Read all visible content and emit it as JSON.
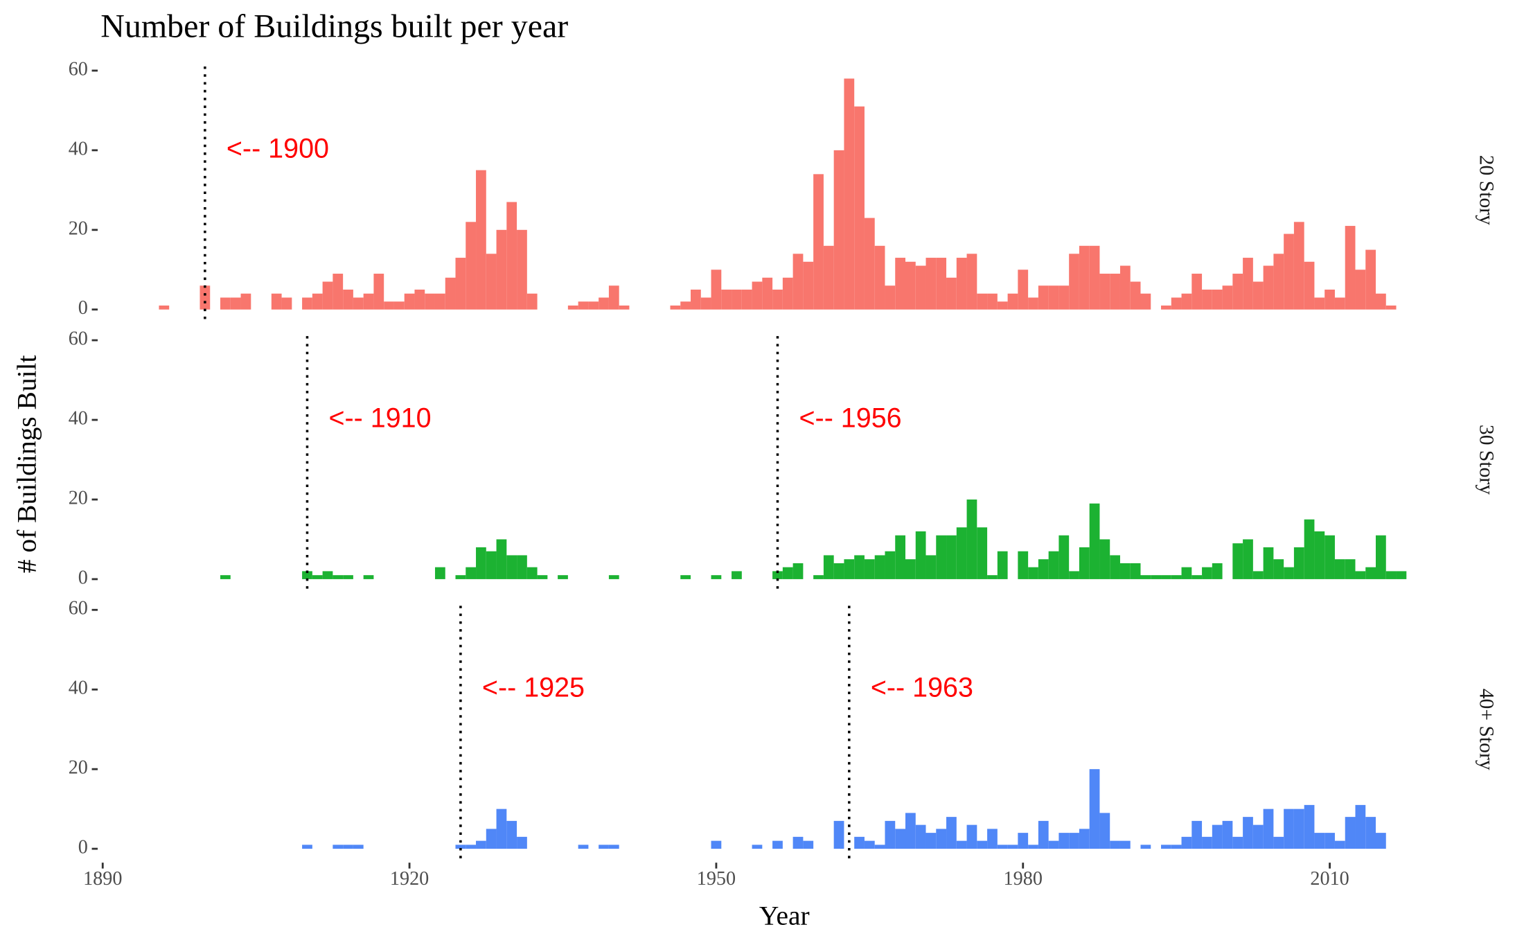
{
  "chart_data": {
    "type": "bar",
    "title": "Number of Buildings built per year",
    "xlabel": "Year",
    "ylabel": "# of Buildings Built",
    "xlim": [
      1889.7,
      2017.8
    ],
    "xticks": [
      1890,
      1920,
      1950,
      1980,
      2010
    ],
    "ylim": [
      -3,
      63
    ],
    "yticks": [
      0,
      20,
      40,
      60
    ],
    "series": [
      {
        "name": "20 Story",
        "color": "#f8766d",
        "x": [
          1896,
          1900,
          1902,
          1903,
          1904,
          1907,
          1908,
          1910,
          1911,
          1912,
          1913,
          1914,
          1915,
          1916,
          1917,
          1918,
          1919,
          1920,
          1921,
          1922,
          1923,
          1924,
          1925,
          1926,
          1927,
          1928,
          1929,
          1930,
          1931,
          1932,
          1936,
          1937,
          1938,
          1939,
          1940,
          1941,
          1946,
          1947,
          1948,
          1949,
          1950,
          1951,
          1952,
          1953,
          1954,
          1955,
          1956,
          1957,
          1958,
          1959,
          1960,
          1961,
          1962,
          1963,
          1964,
          1965,
          1966,
          1967,
          1968,
          1969,
          1970,
          1971,
          1972,
          1973,
          1974,
          1975,
          1976,
          1977,
          1978,
          1979,
          1980,
          1981,
          1982,
          1983,
          1984,
          1985,
          1986,
          1987,
          1988,
          1989,
          1990,
          1991,
          1992,
          1994,
          1995,
          1996,
          1997,
          1998,
          1999,
          2000,
          2001,
          2002,
          2003,
          2004,
          2005,
          2006,
          2007,
          2008,
          2009,
          2010,
          2011,
          2012,
          2013,
          2014,
          2015,
          2016
        ],
        "values": [
          1,
          6,
          3,
          3,
          4,
          4,
          3,
          3,
          4,
          7,
          9,
          5,
          3,
          4,
          9,
          2,
          2,
          4,
          5,
          4,
          4,
          8,
          13,
          22,
          35,
          14,
          20,
          27,
          20,
          4,
          1,
          2,
          2,
          3,
          6,
          1,
          1,
          2,
          5,
          3,
          10,
          5,
          5,
          5,
          7,
          8,
          5,
          8,
          14,
          12,
          34,
          16,
          40,
          58,
          51,
          23,
          16,
          6,
          13,
          12,
          11,
          13,
          13,
          8,
          13,
          14,
          4,
          4,
          2,
          4,
          10,
          3,
          6,
          6,
          6,
          14,
          16,
          16,
          9,
          9,
          11,
          7,
          4,
          1,
          3,
          4,
          9,
          5,
          5,
          6,
          9,
          13,
          7,
          11,
          14,
          19,
          22,
          12,
          3,
          5,
          3,
          21,
          10,
          15,
          4,
          1
        ],
        "vlines": [
          {
            "x": 1900,
            "label": "<-- 1900"
          }
        ]
      },
      {
        "name": "30 Story",
        "color": "#1cb232",
        "x": [
          1902,
          1910,
          1911,
          1912,
          1913,
          1914,
          1916,
          1923,
          1925,
          1926,
          1927,
          1928,
          1929,
          1930,
          1931,
          1932,
          1933,
          1935,
          1940,
          1947,
          1950,
          1952,
          1956,
          1957,
          1958,
          1960,
          1961,
          1962,
          1963,
          1964,
          1965,
          1966,
          1967,
          1968,
          1969,
          1970,
          1971,
          1972,
          1973,
          1974,
          1975,
          1976,
          1977,
          1978,
          1980,
          1981,
          1982,
          1983,
          1984,
          1985,
          1986,
          1987,
          1988,
          1989,
          1990,
          1991,
          1992,
          1993,
          1994,
          1995,
          1996,
          1997,
          1998,
          1999,
          2001,
          2002,
          2003,
          2004,
          2005,
          2006,
          2007,
          2008,
          2009,
          2010,
          2011,
          2012,
          2013,
          2014,
          2015,
          2016,
          2017
        ],
        "values": [
          1,
          2,
          1,
          2,
          1,
          1,
          1,
          3,
          1,
          3,
          8,
          7,
          10,
          6,
          6,
          3,
          1,
          1,
          1,
          1,
          1,
          2,
          2,
          3,
          4,
          1,
          6,
          4,
          5,
          6,
          5,
          6,
          7,
          11,
          5,
          12,
          6,
          11,
          11,
          13,
          20,
          13,
          1,
          7,
          7,
          3,
          5,
          7,
          11,
          2,
          8,
          19,
          10,
          6,
          4,
          4,
          1,
          1,
          1,
          1,
          3,
          1,
          3,
          4,
          9,
          10,
          2,
          8,
          5,
          3,
          8,
          15,
          12,
          11,
          5,
          5,
          2,
          3,
          11,
          2,
          2
        ],
        "vlines": [
          {
            "x": 1910,
            "label": "<-- 1910"
          },
          {
            "x": 1956,
            "label": "<-- 1956"
          }
        ]
      },
      {
        "name": "40+ Story",
        "color": "#5087f7",
        "x": [
          1910,
          1913,
          1914,
          1915,
          1925,
          1926,
          1927,
          1928,
          1929,
          1930,
          1931,
          1937,
          1939,
          1940,
          1950,
          1954,
          1956,
          1958,
          1959,
          1962,
          1964,
          1965,
          1966,
          1967,
          1968,
          1969,
          1970,
          1971,
          1972,
          1973,
          1974,
          1975,
          1976,
          1977,
          1978,
          1979,
          1980,
          1981,
          1982,
          1983,
          1984,
          1985,
          1986,
          1987,
          1988,
          1989,
          1990,
          1992,
          1994,
          1995,
          1996,
          1997,
          1998,
          1999,
          2000,
          2001,
          2002,
          2003,
          2004,
          2005,
          2006,
          2007,
          2008,
          2009,
          2010,
          2011,
          2012,
          2013,
          2014,
          2015
        ],
        "values": [
          1,
          1,
          1,
          1,
          1,
          1,
          2,
          5,
          10,
          7,
          3,
          1,
          1,
          1,
          2,
          1,
          2,
          3,
          2,
          7,
          3,
          2,
          1,
          7,
          5,
          9,
          6,
          4,
          5,
          8,
          2,
          6,
          2,
          5,
          1,
          1,
          4,
          1,
          7,
          2,
          4,
          4,
          5,
          20,
          9,
          2,
          2,
          1,
          1,
          1,
          3,
          7,
          3,
          6,
          7,
          3,
          8,
          6,
          10,
          3,
          10,
          10,
          11,
          4,
          4,
          2,
          8,
          11,
          8,
          4
        ],
        "vlines": [
          {
            "x": 1925,
            "label": "<-- 1925"
          },
          {
            "x": 1963,
            "label": "<-- 1963"
          }
        ]
      }
    ]
  }
}
